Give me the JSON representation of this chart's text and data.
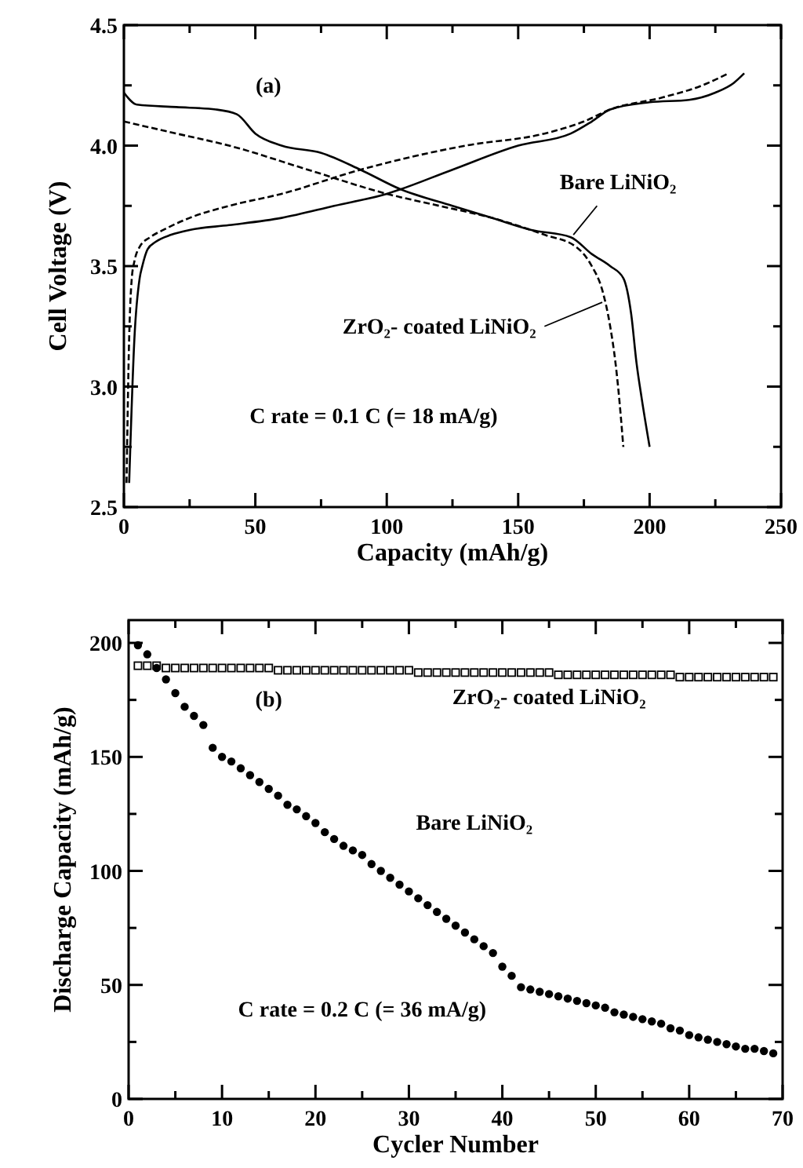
{
  "chart_data": [
    {
      "type": "line",
      "xlabel": "Capacity (mAh/g)",
      "ylabel": "Cell Voltage (V)",
      "xlim": [
        0,
        250
      ],
      "ylim": [
        2.5,
        4.5
      ],
      "xticks": [
        0,
        {
          "value": 25,
          "label": null
        },
        50,
        {
          "value": 75,
          "label": null
        },
        100,
        {
          "value": 125,
          "label": null
        },
        150,
        {
          "value": 175,
          "label": null
        },
        200,
        {
          "value": 225,
          "label": null
        },
        250
      ],
      "yticks": [
        2.5,
        {
          "value": 2.75,
          "label": null
        },
        {
          "value": 3,
          "label": "3.0"
        },
        {
          "value": 3.25,
          "label": null
        },
        3.5,
        {
          "value": 3.75,
          "label": null
        },
        {
          "value": 4,
          "label": "4.0"
        },
        {
          "value": 4.25,
          "label": null
        },
        4.5
      ],
      "grid": false,
      "annotations": [
        "(a)",
        {
          "text": "Bare LiNiO₂",
          "x": 171,
          "y": 3.63
        },
        {
          "text": "ZrO₂- coated LiNiO₂",
          "x": 182,
          "y": 3.35
        },
        "C rate = 0.1 C (= 18 mA/g)"
      ],
      "series": [
        {
          "color": "#000000",
          "line_style": "solid",
          "x": [
            2,
            4,
            6,
            7,
            9,
            12,
            18,
            25,
            40,
            60,
            80,
            100,
            125,
            150,
            170,
            178,
            185,
            200,
            215,
            225,
            232,
            236
          ],
          "values": [
            2.6,
            3.2,
            3.45,
            3.5,
            3.57,
            3.6,
            3.63,
            3.65,
            3.67,
            3.7,
            3.75,
            3.8,
            3.9,
            4.0,
            4.05,
            4.1,
            4.15,
            4.18,
            4.19,
            4.22,
            4.26,
            4.3
          ]
        },
        {
          "color": "#000000",
          "line_style": "solid",
          "x": [
            0,
            5,
            20,
            35,
            43,
            50,
            60,
            75,
            90,
            105,
            125,
            140,
            155,
            170,
            178,
            185,
            190,
            193,
            195,
            197,
            200
          ],
          "values": [
            4.22,
            4.17,
            4.16,
            4.15,
            4.13,
            4.05,
            4.0,
            3.97,
            3.9,
            3.82,
            3.75,
            3.7,
            3.65,
            3.62,
            3.55,
            3.5,
            3.45,
            3.3,
            3.1,
            2.95,
            2.75
          ]
        },
        {
          "color": "#000000",
          "line_style": "dashed",
          "x": [
            1,
            2,
            3,
            4,
            6,
            10,
            15,
            25,
            40,
            60,
            90,
            130,
            160,
            175,
            185,
            205,
            220,
            230
          ],
          "values": [
            2.6,
            3.2,
            3.45,
            3.52,
            3.58,
            3.62,
            3.65,
            3.7,
            3.75,
            3.8,
            3.9,
            4.0,
            4.05,
            4.1,
            4.15,
            4.2,
            4.25,
            4.3
          ]
        },
        {
          "color": "#000000",
          "line_style": "dashed",
          "x": [
            0,
            20,
            40,
            70,
            100,
            120,
            140,
            160,
            172,
            178,
            182,
            185,
            187,
            188,
            190
          ],
          "values": [
            4.1,
            4.05,
            4.0,
            3.9,
            3.8,
            3.75,
            3.7,
            3.63,
            3.58,
            3.5,
            3.4,
            3.25,
            3.1,
            3.0,
            2.75
          ]
        }
      ]
    },
    {
      "type": "scatter",
      "xlabel": "Cycler Number",
      "ylabel": "Discharge Capacity (mAh/g)",
      "xlim": [
        0,
        70
      ],
      "ylim": [
        0,
        210
      ],
      "xticks": [
        0,
        {
          "value": 5,
          "label": null
        },
        10,
        {
          "value": 15,
          "label": null
        },
        20,
        {
          "value": 25,
          "label": null
        },
        30,
        {
          "value": 35,
          "label": null
        },
        40,
        {
          "value": 45,
          "label": null
        },
        50,
        {
          "value": 55,
          "label": null
        },
        60,
        {
          "value": 65,
          "label": null
        },
        70
      ],
      "yticks": [
        0,
        {
          "value": 25,
          "label": null
        },
        50,
        {
          "value": 75,
          "label": null
        },
        100,
        {
          "value": 125,
          "label": null
        },
        150,
        {
          "value": 175,
          "label": null
        },
        200
      ],
      "grid": false,
      "annotations": [
        "(b)",
        "ZrO₂- coated LiNiO₂",
        "Bare LiNiO₂",
        "C rate = 0.2 C (= 36 mA/g)"
      ],
      "series": [
        {
          "color": "#000000",
          "marker": "square",
          "x": [
            1,
            2,
            3,
            4,
            5,
            6,
            7,
            8,
            9,
            10,
            11,
            12,
            13,
            14,
            15,
            16,
            17,
            18,
            19,
            20,
            21,
            22,
            23,
            24,
            25,
            26,
            27,
            28,
            29,
            30,
            31,
            32,
            33,
            34,
            35,
            36,
            37,
            38,
            39,
            40,
            41,
            42,
            43,
            44,
            45,
            46,
            47,
            48,
            49,
            50,
            51,
            52,
            53,
            54,
            55,
            56,
            57,
            58,
            59,
            60,
            61,
            62,
            63,
            64,
            65,
            66,
            67,
            68,
            69
          ],
          "values": [
            190,
            190,
            190,
            189,
            189,
            189,
            189,
            189,
            189,
            189,
            189,
            189,
            189,
            189,
            189,
            188,
            188,
            188,
            188,
            188,
            188,
            188,
            188,
            188,
            188,
            188,
            188,
            188,
            188,
            188,
            187,
            187,
            187,
            187,
            187,
            187,
            187,
            187,
            187,
            187,
            187,
            187,
            187,
            187,
            187,
            186,
            186,
            186,
            186,
            186,
            186,
            186,
            186,
            186,
            186,
            186,
            186,
            186,
            185,
            185,
            185,
            185,
            185,
            185,
            185,
            185,
            185,
            185,
            185
          ]
        },
        {
          "color": "#000000",
          "marker": "circle",
          "x": [
            1,
            2,
            3,
            4,
            5,
            6,
            7,
            8,
            9,
            10,
            11,
            12,
            13,
            14,
            15,
            16,
            17,
            18,
            19,
            20,
            21,
            22,
            23,
            24,
            25,
            26,
            27,
            28,
            29,
            30,
            31,
            32,
            33,
            34,
            35,
            36,
            37,
            38,
            39,
            40,
            41,
            42,
            43,
            44,
            45,
            46,
            47,
            48,
            49,
            50,
            51,
            52,
            53,
            54,
            55,
            56,
            57,
            58,
            59,
            60,
            61,
            62,
            63,
            64,
            65,
            66,
            67,
            68,
            69
          ],
          "values": [
            199,
            195,
            189,
            184,
            178,
            172,
            168,
            164,
            154,
            150,
            148,
            145,
            142,
            139,
            136,
            133,
            129,
            127,
            124,
            121,
            117,
            114,
            111,
            109,
            107,
            103,
            100,
            97,
            94,
            91,
            88,
            85,
            82,
            79,
            76,
            73,
            70,
            67,
            64,
            58,
            54,
            49,
            48,
            47,
            46,
            45,
            44,
            43,
            42,
            41,
            40,
            38,
            37,
            36,
            35,
            34,
            33,
            31,
            30,
            28,
            27,
            26,
            25,
            24,
            23,
            22,
            22,
            21,
            20
          ]
        }
      ]
    }
  ]
}
